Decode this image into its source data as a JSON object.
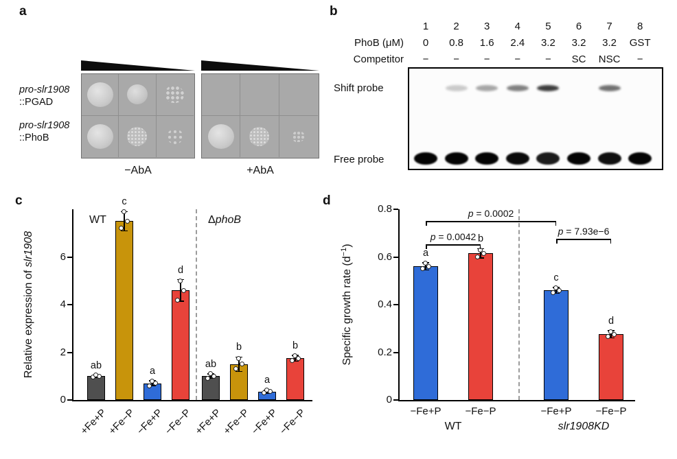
{
  "figure": {
    "panel_a": {
      "label": "a",
      "row_labels": [
        {
          "italic": "pro-slr1908",
          "plain": "::PGAD"
        },
        {
          "italic": "pro-slr1908",
          "plain": "::PhoB"
        }
      ],
      "boxes": [
        {
          "condition": "−AbA",
          "spots": [
            [
              "solid-lg",
              "solid-md",
              "cluster"
            ],
            [
              "solid-lg",
              "speckled",
              "scatter"
            ]
          ]
        },
        {
          "condition": "+AbA",
          "spots": [
            [
              "none",
              "none",
              "none"
            ],
            [
              "solid-lg",
              "speckled",
              "scatter-sm"
            ]
          ]
        }
      ]
    },
    "panel_b": {
      "label": "b",
      "lanes": [
        "1",
        "2",
        "3",
        "4",
        "5",
        "6",
        "7",
        "8"
      ],
      "phob_row": {
        "label": "PhoB (μM)",
        "values": [
          "0",
          "0.8",
          "1.6",
          "2.4",
          "3.2",
          "3.2",
          "3.2",
          "GST"
        ]
      },
      "competitor_row": {
        "label": "Competitor",
        "values": [
          "−",
          "−",
          "−",
          "−",
          "−",
          "SC",
          "NSC",
          "−"
        ]
      },
      "shift_probe_label": "Shift probe",
      "free_probe_label": "Free probe",
      "shift_band_intensity": [
        0,
        0.22,
        0.38,
        0.55,
        0.85,
        0,
        0.62,
        0
      ],
      "free_band_intensity": [
        1,
        1,
        1,
        0.97,
        0.9,
        1,
        0.95,
        1
      ]
    },
    "panel_c": {
      "label": "c",
      "annotations": {
        "group1": "WT",
        "group2_prefix": "Δ",
        "group2_italic": "phoB"
      }
    },
    "panel_d": {
      "label": "d"
    }
  },
  "chart_data": [
    {
      "type": "bar",
      "panel": "c",
      "title": "",
      "ylabel": "Relative expression of slr1908",
      "ylabel_prefix": "Relative expression of ",
      "ylabel_italic": "slr1908",
      "ylim": [
        0,
        8
      ],
      "yticks": [
        "0",
        "2",
        "4",
        "6"
      ],
      "ytick_values": [
        0,
        2,
        4,
        6
      ],
      "grid": false,
      "groups": [
        {
          "name": "WT",
          "italic": false
        },
        {
          "name": "ΔphoB",
          "italic": true
        }
      ],
      "categories": [
        "+Fe+P",
        "+Fe−P",
        "−Fe+P",
        "−Fe−P",
        "+Fe+P",
        "+Fe−P",
        "−Fe+P",
        "−Fe−P"
      ],
      "values": [
        1.0,
        7.5,
        0.7,
        4.6,
        1.0,
        1.5,
        0.35,
        1.75
      ],
      "errors": [
        0.05,
        0.4,
        0.1,
        0.45,
        0.1,
        0.3,
        0.07,
        0.12
      ],
      "sig_letters": [
        "ab",
        "c",
        "a",
        "d",
        "ab",
        "b",
        "a",
        "b"
      ],
      "bar_colors": [
        "#4f4f4f",
        "#c8940b",
        "#2f6cd8",
        "#e8433a",
        "#4f4f4f",
        "#c8940b",
        "#2f6cd8",
        "#e8433a"
      ],
      "points": [
        [
          0.95,
          1.0,
          1.05
        ],
        [
          7.2,
          7.5,
          7.9
        ],
        [
          0.6,
          0.7,
          0.78
        ],
        [
          4.2,
          4.6,
          5.0
        ],
        [
          0.9,
          1.0,
          1.1
        ],
        [
          1.3,
          1.5,
          1.75
        ],
        [
          0.3,
          0.35,
          0.42
        ],
        [
          1.65,
          1.75,
          1.85
        ]
      ]
    },
    {
      "type": "bar",
      "panel": "d",
      "title": "",
      "ylabel": "Specific growth rate (d⁻¹)",
      "ylabel_prefix": "Specific growth rate (d",
      "ylabel_sup": "−1",
      "ylabel_suffix": ")",
      "ylim": [
        0,
        0.8
      ],
      "yticks": [
        "0",
        "0.2",
        "0.4",
        "0.6",
        "0.8"
      ],
      "ytick_values": [
        0,
        0.2,
        0.4,
        0.6,
        0.8
      ],
      "grid": false,
      "groups": [
        {
          "name": "WT",
          "italic": false
        },
        {
          "name": "slr1908KD",
          "italic": true
        }
      ],
      "categories": [
        "−Fe+P",
        "−Fe−P",
        "−Fe+P",
        "−Fe−P"
      ],
      "values": [
        0.56,
        0.615,
        0.46,
        0.275
      ],
      "errors": [
        0.015,
        0.02,
        0.012,
        0.015
      ],
      "sig_letters": [
        "a",
        "b",
        "c",
        "d"
      ],
      "bar_colors": [
        "#2f6cd8",
        "#e8433a",
        "#2f6cd8",
        "#e8433a"
      ],
      "points": [
        [
          0.55,
          0.56,
          0.575
        ],
        [
          0.6,
          0.615,
          0.63
        ],
        [
          0.45,
          0.46,
          0.47
        ],
        [
          0.265,
          0.275,
          0.285
        ]
      ],
      "pvalues": [
        {
          "italic": "p",
          "text": " = 0.0042",
          "from": 0,
          "to": 1
        },
        {
          "italic": "p",
          "text": " = 0.0002",
          "from": 0,
          "to": 2
        },
        {
          "italic": "p",
          "text": " = 7.93e−6",
          "from": 2,
          "to": 3
        }
      ]
    }
  ]
}
